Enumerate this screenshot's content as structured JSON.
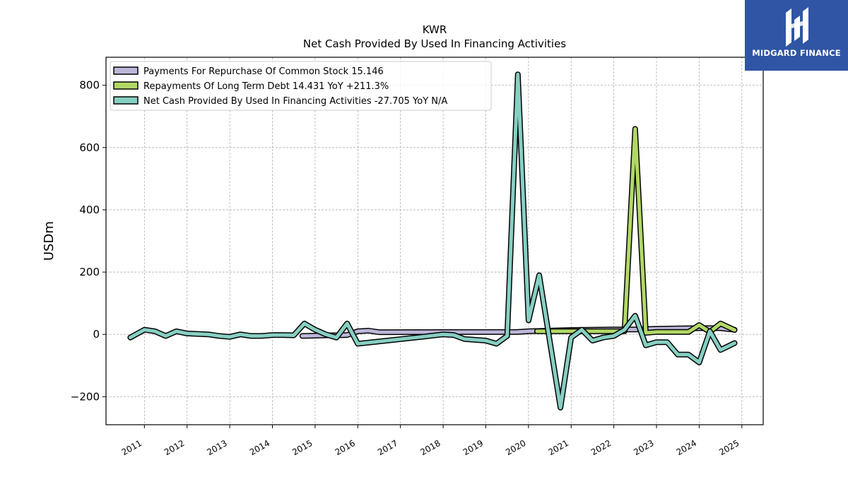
{
  "title": "KWR",
  "subtitle": "Net Cash Provided By Used In Financing Activities",
  "logo": {
    "text": "MIDGARD FINANCE",
    "bg_color": "#2f55a4"
  },
  "chart_data": {
    "type": "line",
    "title": "KWR",
    "subtitle": "Net Cash Provided By Used In Financing Activities",
    "xlabel": "",
    "ylabel": "USDm",
    "xlim": [
      2010.1,
      2025.5
    ],
    "ylim": [
      -290,
      890
    ],
    "yticks": [
      -200,
      0,
      200,
      400,
      600,
      800
    ],
    "ytick_labels": [
      "−200",
      "0",
      "200",
      "400",
      "600",
      "800"
    ],
    "xticks": [
      2011,
      2012,
      2013,
      2014,
      2015,
      2016,
      2017,
      2018,
      2019,
      2020,
      2021,
      2022,
      2023,
      2024,
      2025
    ],
    "xtick_labels": [
      "2011",
      "2012",
      "2013",
      "2014",
      "2015",
      "2016",
      "2017",
      "2018",
      "2019",
      "2020",
      "2021",
      "2022",
      "2023",
      "2024",
      "2025"
    ],
    "grid": true,
    "legend_position": "top-left",
    "series": [
      {
        "name": "Payments For Repurchase Of Common Stock  15.146",
        "color": "#bcb6d9",
        "points": [
          [
            2014.7,
            -5
          ],
          [
            2015.0,
            -4
          ],
          [
            2015.25,
            -3
          ],
          [
            2015.5,
            -3
          ],
          [
            2015.75,
            -2
          ],
          [
            2016.0,
            10
          ],
          [
            2016.25,
            12
          ],
          [
            2016.5,
            7
          ],
          [
            2019.75,
            8
          ],
          [
            2020.0,
            10
          ],
          [
            2020.5,
            12
          ],
          [
            2021.0,
            14
          ],
          [
            2021.5,
            15
          ],
          [
            2022.0,
            16
          ],
          [
            2022.5,
            16
          ],
          [
            2022.75,
            17
          ],
          [
            2023.0,
            18
          ],
          [
            2023.5,
            19
          ],
          [
            2024.0,
            20
          ],
          [
            2024.5,
            20
          ],
          [
            2024.83,
            15
          ]
        ]
      },
      {
        "name": "Repayments Of Long Term Debt  14.431 YoY +211.3%",
        "color": "#b1d866",
        "points": [
          [
            2020.2,
            10
          ],
          [
            2020.5,
            10
          ],
          [
            2020.75,
            10
          ],
          [
            2021.0,
            10
          ],
          [
            2021.25,
            10
          ],
          [
            2021.5,
            10
          ],
          [
            2021.75,
            10
          ],
          [
            2022.0,
            10
          ],
          [
            2022.25,
            10
          ],
          [
            2022.5,
            660
          ],
          [
            2022.75,
            5
          ],
          [
            2023.0,
            8
          ],
          [
            2023.25,
            8
          ],
          [
            2023.5,
            8
          ],
          [
            2023.75,
            8
          ],
          [
            2024.0,
            30
          ],
          [
            2024.25,
            8
          ],
          [
            2024.5,
            35
          ],
          [
            2024.83,
            14
          ]
        ]
      },
      {
        "name": "Net Cash Provided By Used In Financing Activities  -27.705 YoY N/A",
        "color": "#86cfc2",
        "points": [
          [
            2010.67,
            -10
          ],
          [
            2011.0,
            15
          ],
          [
            2011.25,
            10
          ],
          [
            2011.5,
            -5
          ],
          [
            2011.75,
            10
          ],
          [
            2012.0,
            3
          ],
          [
            2012.5,
            0
          ],
          [
            2012.75,
            -5
          ],
          [
            2013.0,
            -8
          ],
          [
            2013.25,
            0
          ],
          [
            2013.5,
            -5
          ],
          [
            2013.75,
            -5
          ],
          [
            2014.0,
            -2
          ],
          [
            2014.25,
            -2
          ],
          [
            2014.5,
            -3
          ],
          [
            2014.75,
            35
          ],
          [
            2015.0,
            15
          ],
          [
            2015.25,
            0
          ],
          [
            2015.5,
            -10
          ],
          [
            2015.75,
            35
          ],
          [
            2016.0,
            -30
          ],
          [
            2017.5,
            -8
          ],
          [
            2018.0,
            0
          ],
          [
            2018.25,
            -2
          ],
          [
            2018.5,
            -15
          ],
          [
            2019.0,
            -20
          ],
          [
            2019.25,
            -30
          ],
          [
            2019.5,
            -5
          ],
          [
            2019.75,
            835
          ],
          [
            2020.0,
            45
          ],
          [
            2020.25,
            190
          ],
          [
            2020.75,
            -235
          ],
          [
            2021.0,
            -10
          ],
          [
            2021.25,
            15
          ],
          [
            2021.5,
            -20
          ],
          [
            2021.75,
            -10
          ],
          [
            2022.0,
            -5
          ],
          [
            2022.25,
            15
          ],
          [
            2022.5,
            60
          ],
          [
            2022.75,
            -35
          ],
          [
            2023.0,
            -25
          ],
          [
            2023.25,
            -25
          ],
          [
            2023.5,
            -65
          ],
          [
            2023.75,
            -65
          ],
          [
            2024.0,
            -90
          ],
          [
            2024.25,
            10
          ],
          [
            2024.5,
            -50
          ],
          [
            2024.83,
            -28
          ]
        ]
      }
    ]
  }
}
